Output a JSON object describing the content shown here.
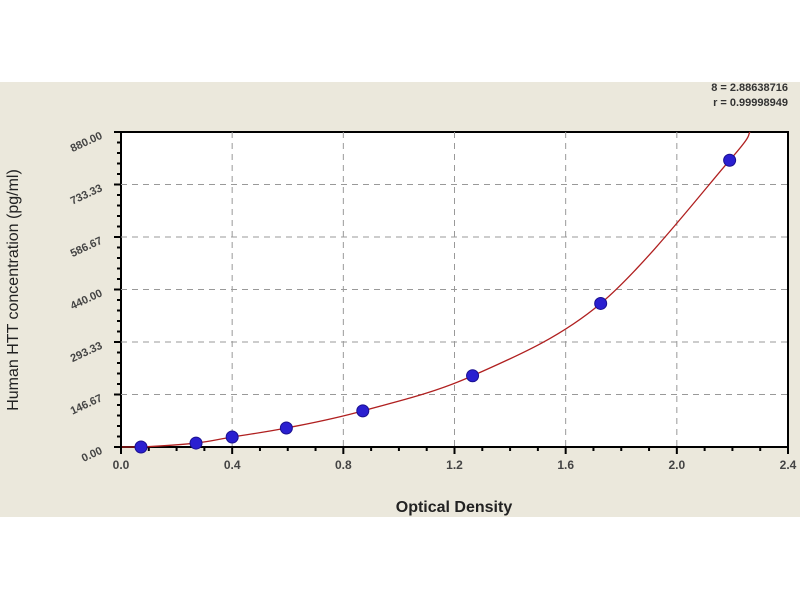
{
  "chart_data": {
    "type": "scatter",
    "title": "",
    "xlabel": "Optical Density",
    "ylabel": "Human HTT concentration (pg/ml)",
    "xlim": [
      0,
      2.4
    ],
    "ylim": [
      0,
      880
    ],
    "x_ticks": [
      "0.0",
      "0.4",
      "0.8",
      "1.2",
      "1.6",
      "2.0",
      "2.4"
    ],
    "y_ticks": [
      "0.00",
      "146.67",
      "293.33",
      "440.00",
      "586.67",
      "733.33",
      "880.00"
    ],
    "grid": true,
    "points": {
      "x": [
        0.072,
        0.27,
        0.4,
        0.595,
        0.87,
        1.265,
        1.726,
        2.19
      ],
      "y": [
        0,
        11,
        28,
        53,
        101,
        199,
        401,
        801
      ]
    },
    "fit_curve": true,
    "annotations": [
      "8 = 2.88638716",
      "r = 0.99998949"
    ],
    "colors": {
      "points": "#2a1fd0",
      "curve": "#b02020",
      "grid": "#999999",
      "background": "#ebe8dc"
    }
  }
}
